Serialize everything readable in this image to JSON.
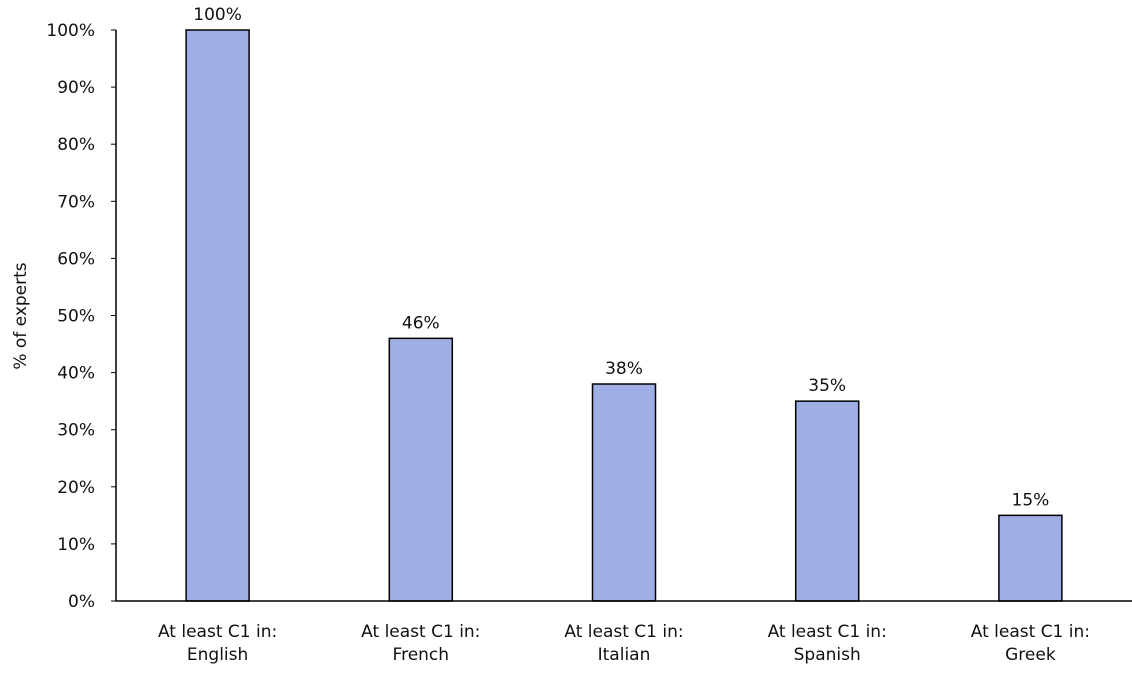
{
  "chart_data": {
    "type": "bar",
    "title": "",
    "xlabel": "",
    "ylabel": "% of experts",
    "categories": [
      [
        "At least C1 in:",
        "English"
      ],
      [
        "At least C1 in:",
        "French"
      ],
      [
        "At least C1 in:",
        "Italian"
      ],
      [
        "At least C1 in:",
        "Spanish"
      ],
      [
        "At least C1 in:",
        "Greek"
      ]
    ],
    "values": [
      100,
      46,
      38,
      35,
      15
    ],
    "value_labels": [
      "100%",
      "46%",
      "38%",
      "35%",
      "15%"
    ],
    "ylim": [
      0,
      100
    ],
    "yticks": [
      0,
      10,
      20,
      30,
      40,
      50,
      60,
      70,
      80,
      90,
      100
    ],
    "ytick_labels": [
      "0%",
      "10%",
      "20%",
      "30%",
      "40%",
      "50%",
      "60%",
      "70%",
      "80%",
      "90%",
      "100%"
    ],
    "grid": false,
    "legend": "none",
    "bar_color": "#a0aee6",
    "bar_edge_color": "#000000"
  }
}
